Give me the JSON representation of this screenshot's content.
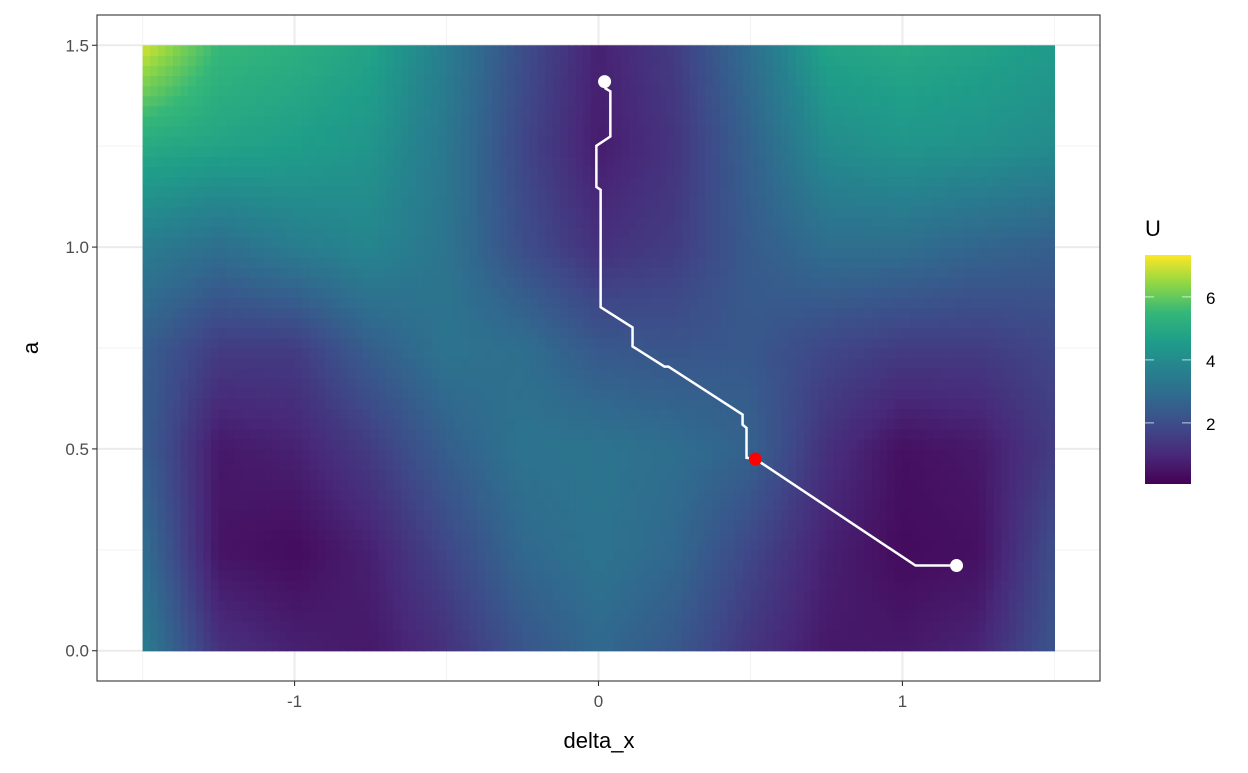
{
  "chart_data": {
    "type": "heatmap",
    "title": "",
    "xlabel": "delta_x",
    "ylabel": "a",
    "xlim": [
      -1.65,
      1.65
    ],
    "ylim": [
      -0.075,
      1.575
    ],
    "x_ticks": [
      -1,
      0,
      1
    ],
    "x_tick_labels": [
      "-1",
      "0",
      "1"
    ],
    "y_ticks": [
      0.0,
      0.5,
      1.0,
      1.5
    ],
    "y_tick_labels": [
      "0.0",
      "0.5",
      "1.0",
      "1.5"
    ],
    "grid": true,
    "legend": {
      "title": "U",
      "position": "right",
      "colormap": "viridis",
      "range": [
        0.06,
        7.33
      ],
      "ticks": [
        2,
        4,
        6
      ],
      "tick_labels": [
        "2",
        "4",
        "6"
      ]
    },
    "heatmap": {
      "x": [
        -1.5,
        -1.25,
        -1.0,
        -0.75,
        -0.5,
        -0.25,
        0.0,
        0.25,
        0.5,
        0.75,
        1.0,
        1.25,
        1.5
      ],
      "y": [
        0.0,
        0.25,
        0.5,
        0.75,
        1.0,
        1.25,
        1.5
      ],
      "z": [
        [
          3.5,
          1.2,
          0.8,
          0.6,
          1.2,
          2.2,
          2.8,
          2.3,
          1.3,
          0.6,
          0.6,
          0.9,
          2.2
        ],
        [
          3.0,
          0.5,
          0.3,
          0.8,
          1.8,
          2.8,
          3.2,
          2.8,
          1.8,
          0.8,
          0.3,
          0.4,
          2.0
        ],
        [
          2.5,
          0.6,
          0.8,
          1.5,
          2.5,
          3.2,
          3.2,
          3.0,
          2.6,
          1.2,
          0.4,
          0.6,
          1.5
        ],
        [
          2.5,
          1.5,
          1.5,
          2.5,
          3.2,
          3.0,
          2.3,
          2.2,
          2.3,
          1.8,
          1.5,
          1.5,
          1.8
        ],
        [
          3.5,
          3.0,
          3.5,
          3.8,
          3.2,
          2.0,
          1.2,
          1.5,
          2.4,
          3.0,
          3.0,
          2.7,
          2.5
        ],
        [
          5.0,
          4.8,
          4.6,
          4.3,
          3.3,
          1.8,
          0.7,
          1.3,
          2.6,
          4.0,
          4.3,
          4.2,
          4.0
        ],
        [
          7.0,
          5.5,
          5.2,
          4.8,
          3.5,
          2.0,
          0.8,
          1.5,
          3.0,
          4.8,
          5.0,
          4.8,
          4.5
        ]
      ]
    },
    "path": {
      "color": "#ffffff",
      "points": [
        [
          1.178,
          0.211
        ],
        [
          1.043,
          0.211
        ],
        [
          0.516,
          0.475
        ],
        [
          0.487,
          0.478
        ],
        [
          0.487,
          0.552
        ],
        [
          0.474,
          0.56
        ],
        [
          0.474,
          0.585
        ],
        [
          0.23,
          0.704
        ],
        [
          0.217,
          0.704
        ],
        [
          0.112,
          0.754
        ],
        [
          0.112,
          0.801
        ],
        [
          0.007,
          0.851
        ],
        [
          0.007,
          1.142
        ],
        [
          -0.007,
          1.149
        ],
        [
          -0.007,
          1.251
        ],
        [
          0.039,
          1.274
        ],
        [
          0.039,
          1.386
        ],
        [
          0.023,
          1.393
        ],
        [
          0.02,
          1.41
        ]
      ]
    },
    "markers": [
      {
        "label": "start",
        "x": 1.178,
        "y": 0.211,
        "color": "#ffffff"
      },
      {
        "label": "end",
        "x": 0.02,
        "y": 1.41,
        "color": "#ffffff"
      },
      {
        "label": "highlight",
        "x": 0.516,
        "y": 0.475,
        "color": "#ff0000"
      }
    ]
  }
}
